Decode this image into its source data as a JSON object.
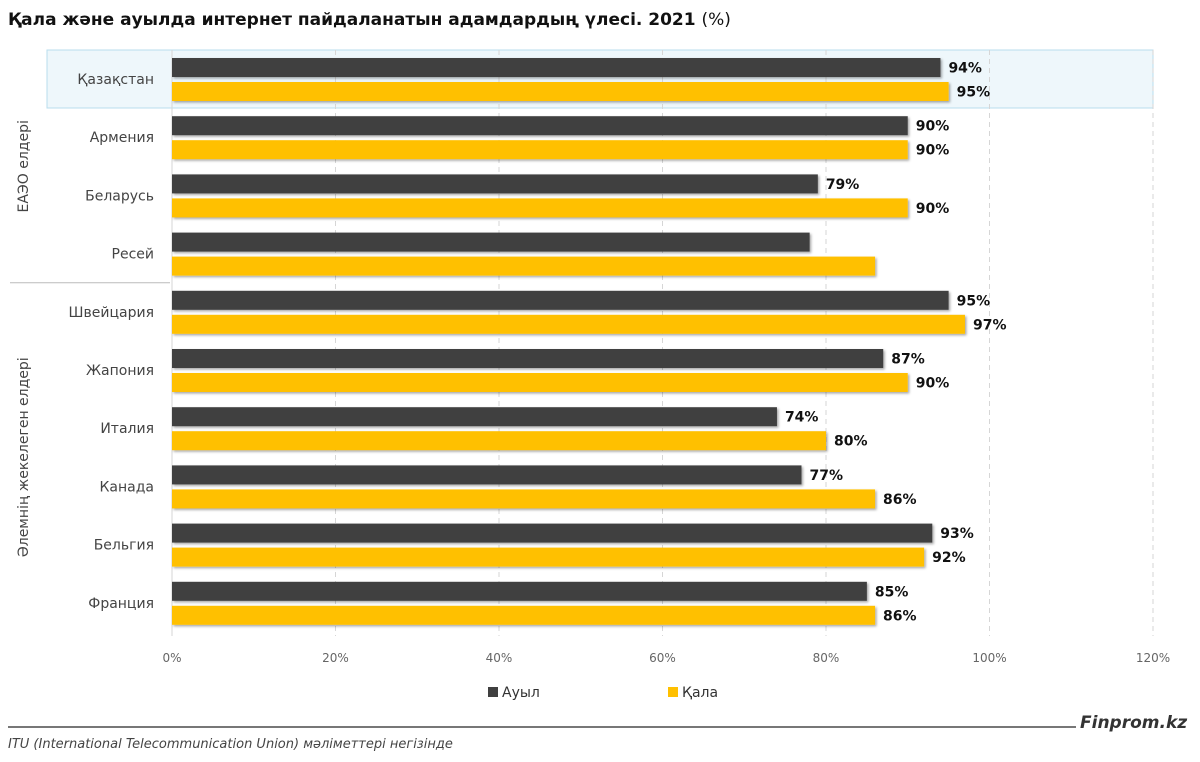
{
  "header": {
    "title_main": "Қала және ауылда интернет пайдаланатын адамдардың үлесі. 2021",
    "title_unit": "(%)"
  },
  "footer": {
    "brand": "Finprom.kz",
    "source": "ITU (International Telecommunication Union) мәліметтері негізінде"
  },
  "colors": {
    "rural": "#404040",
    "urban": "#FFC000",
    "highlight_fill": "#EEF7FB",
    "highlight_stroke": "#B8DDEE",
    "grid": "#D6D6D6"
  },
  "chart_data": {
    "type": "bar",
    "orientation": "horizontal",
    "categories": [
      "Қазақстан",
      "Армения",
      "Беларусь",
      "Ресей",
      "Швейцария",
      "Жапония",
      "Италия",
      "Канада",
      "Бельгия",
      "Франция"
    ],
    "groups": [
      {
        "label": "ЕАЭО елдері",
        "categories": [
          "Қазақстан",
          "Армения",
          "Беларусь",
          "Ресей"
        ]
      },
      {
        "label": "Әлемнің жекелеген елдері",
        "categories": [
          "Швейцария",
          "Жапония",
          "Италия",
          "Канада",
          "Бельгия",
          "Франция"
        ]
      }
    ],
    "highlight": "Қазақстан",
    "series": [
      {
        "name": "Ауыл",
        "color": "#404040",
        "values": [
          94,
          90,
          79,
          78,
          95,
          87,
          74,
          77,
          93,
          85
        ],
        "labels": [
          "94%",
          "90%",
          "79%",
          "",
          "95%",
          "87%",
          "74%",
          "77%",
          "93%",
          "85%"
        ]
      },
      {
        "name": "Қала",
        "color": "#FFC000",
        "values": [
          95,
          90,
          90,
          86,
          97,
          90,
          80,
          86,
          92,
          86
        ],
        "labels": [
          "95%",
          "90%",
          "90%",
          "",
          "97%",
          "90%",
          "80%",
          "86%",
          "92%",
          "86%"
        ]
      }
    ],
    "xlim": [
      0,
      120
    ],
    "xticks": [
      0,
      20,
      40,
      60,
      80,
      100,
      120
    ],
    "xtick_labels": [
      "0%",
      "20%",
      "40%",
      "60%",
      "80%",
      "100%",
      "120%"
    ],
    "grid": true,
    "legend_position": "bottom"
  }
}
